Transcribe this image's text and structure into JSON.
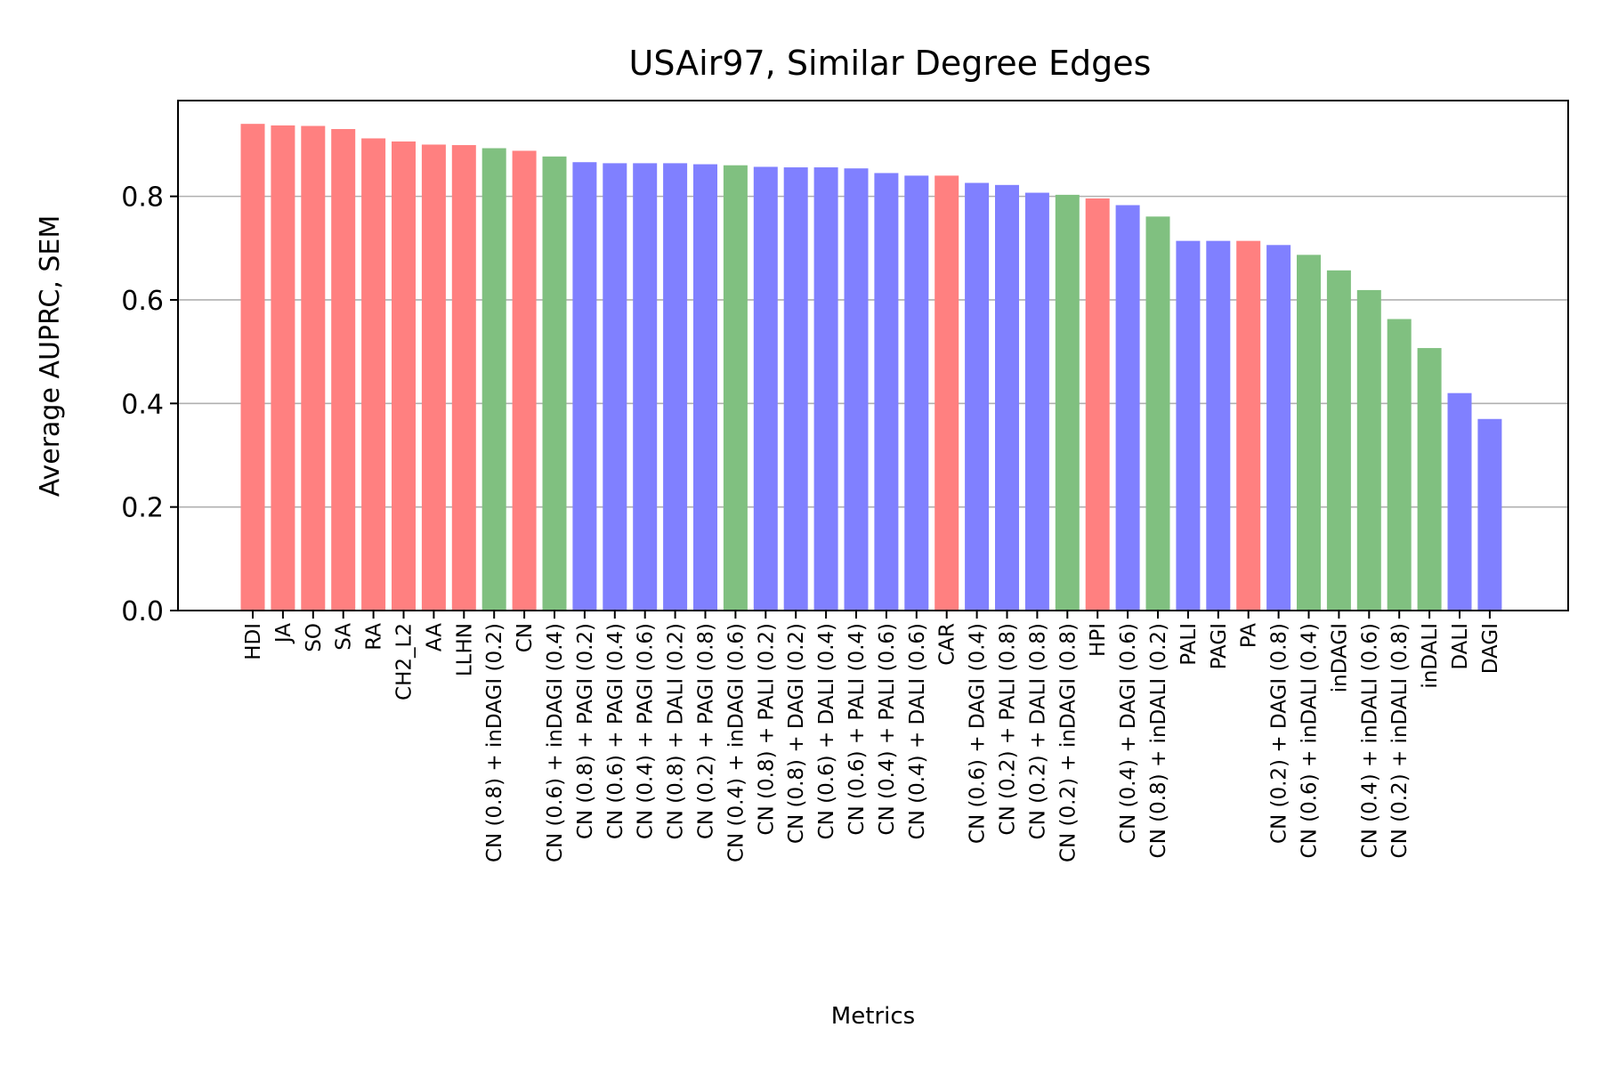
{
  "chart_data": {
    "type": "bar",
    "title": "USAir97, Similar Degree Edges",
    "xlabel": "Metrics",
    "ylabel": "Average AUPRC, SEM",
    "ylim": [
      0,
      0.985
    ],
    "yticks": [
      "0.0",
      "0.2",
      "0.4",
      "0.6",
      "0.8"
    ],
    "ytick_values": [
      0.0,
      0.2,
      0.4,
      0.6,
      0.8
    ],
    "grid": "y",
    "colors": {
      "red": "#ff8080",
      "green": "#80c080",
      "blue": "#8080ff"
    },
    "categories": [
      "HDI",
      "JA",
      "SO",
      "SA",
      "RA",
      "CH2_L2",
      "AA",
      "LLHN",
      "CN (0.8) + inDAGI (0.2)",
      "CN",
      "CN (0.6) + inDAGI (0.4)",
      "CN (0.8) + PAGI (0.2)",
      "CN (0.6) + PAGI (0.4)",
      "CN (0.4) + PAGI (0.6)",
      "CN (0.8) + DALI (0.2)",
      "CN (0.2) + PAGI (0.8)",
      "CN (0.4) + inDAGI (0.6)",
      "CN (0.8) + PALI (0.2)",
      "CN (0.8) + DAGI (0.2)",
      "CN (0.6) + DALI (0.4)",
      "CN (0.6) + PALI (0.4)",
      "CN (0.4) + PALI (0.6)",
      "CN (0.4) + DALI (0.6)",
      "CAR",
      "CN (0.6) + DAGI (0.4)",
      "CN (0.2) + PALI (0.8)",
      "CN (0.2) + DALI (0.8)",
      "CN (0.2) + inDAGI (0.8)",
      "HPI",
      "CN (0.4) + DAGI (0.6)",
      "CN (0.8) + inDALI (0.2)",
      "PALI",
      "PAGI",
      "PA",
      "CN (0.2) + DAGI (0.8)",
      "CN (0.6) + inDALI (0.4)",
      "inDAGI",
      "CN (0.4) + inDALI (0.6)",
      "CN (0.2) + inDALI (0.8)",
      "inDALI",
      "DALI",
      "DAGI"
    ],
    "values": [
      0.94,
      0.937,
      0.936,
      0.93,
      0.912,
      0.906,
      0.9,
      0.899,
      0.893,
      0.888,
      0.877,
      0.866,
      0.864,
      0.864,
      0.864,
      0.862,
      0.86,
      0.857,
      0.856,
      0.856,
      0.854,
      0.845,
      0.84,
      0.84,
      0.826,
      0.822,
      0.807,
      0.803,
      0.796,
      0.783,
      0.761,
      0.714,
      0.714,
      0.714,
      0.706,
      0.687,
      0.657,
      0.619,
      0.563,
      0.507,
      0.42,
      0.37
    ],
    "groups": [
      "red",
      "red",
      "red",
      "red",
      "red",
      "red",
      "red",
      "red",
      "green",
      "red",
      "green",
      "blue",
      "blue",
      "blue",
      "blue",
      "blue",
      "green",
      "blue",
      "blue",
      "blue",
      "blue",
      "blue",
      "blue",
      "red",
      "blue",
      "blue",
      "blue",
      "green",
      "red",
      "blue",
      "green",
      "blue",
      "blue",
      "red",
      "blue",
      "green",
      "green",
      "green",
      "green",
      "green",
      "blue",
      "blue"
    ]
  }
}
